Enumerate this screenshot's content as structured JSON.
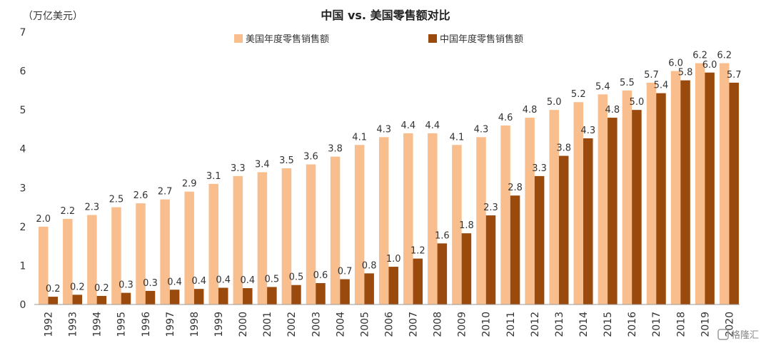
{
  "chart_data": {
    "type": "bar",
    "title": "中国 vs. 美国零售额对比",
    "ylabel": "（万亿美元）",
    "ylim": [
      0,
      7
    ],
    "yticks": [
      "0",
      "1",
      "2",
      "3",
      "4",
      "5",
      "6",
      "7"
    ],
    "legend_position": "top",
    "categories": [
      "1992",
      "1993",
      "1994",
      "1995",
      "1996",
      "1997",
      "1998",
      "1999",
      "2000",
      "2001",
      "2002",
      "2003",
      "2004",
      "2005",
      "2006",
      "2007",
      "2008",
      "2009",
      "2010",
      "2011",
      "2012",
      "2013",
      "2014",
      "2015",
      "2016",
      "2017",
      "2018",
      "2019",
      "2020"
    ],
    "series": [
      {
        "name": "美国年度零售销售额",
        "color": "#F9BE8E",
        "values": [
          2.0,
          2.2,
          2.3,
          2.5,
          2.6,
          2.7,
          2.9,
          3.1,
          3.3,
          3.4,
          3.5,
          3.6,
          3.8,
          4.1,
          4.3,
          4.4,
          4.4,
          4.1,
          4.3,
          4.6,
          4.8,
          5.0,
          5.2,
          5.4,
          5.5,
          5.7,
          6.0,
          6.2,
          6.2
        ],
        "labels": [
          "2.0",
          "2.2",
          "2.3",
          "2.5",
          "2.6",
          "2.7",
          "2.9",
          "3.1",
          "3.3",
          "3.4",
          "3.5",
          "3.6",
          "3.8",
          "4.1",
          "4.3",
          "4.4",
          "4.4",
          "4.1",
          "4.3",
          "4.6",
          "4.8",
          "5.0",
          "5.2",
          "5.4",
          "5.5",
          "5.7",
          "6.0",
          "6.2",
          "6.2"
        ]
      },
      {
        "name": "中国年度零售销售额",
        "color": "#9A4A0D",
        "values": [
          0.2,
          0.25,
          0.22,
          0.3,
          0.35,
          0.38,
          0.4,
          0.43,
          0.42,
          0.45,
          0.5,
          0.55,
          0.65,
          0.8,
          0.97,
          1.18,
          1.57,
          1.83,
          2.29,
          2.8,
          3.3,
          3.82,
          4.27,
          4.8,
          5.0,
          5.43,
          5.76,
          5.96,
          5.7
        ],
        "labels": [
          "0.2",
          "0.2",
          "0.2",
          "0.3",
          "0.3",
          "0.4",
          "0.4",
          "0.4",
          "0.4",
          "0.5",
          "0.5",
          "0.6",
          "0.7",
          "0.8",
          "1.0",
          "1.2",
          "1.6",
          "1.8",
          "2.3",
          "2.8",
          "3.3",
          "3.8",
          "4.3",
          "4.8",
          "5.0",
          "5.4",
          "5.8",
          "6.0",
          "5.7"
        ]
      }
    ]
  },
  "watermark": {
    "text": "格隆汇",
    "icon": "logo-icon"
  }
}
